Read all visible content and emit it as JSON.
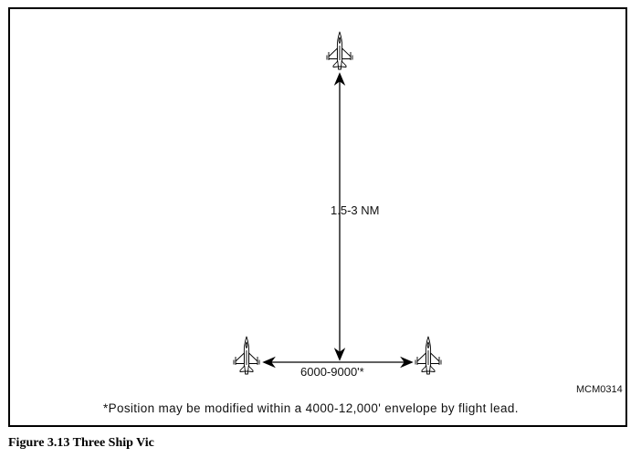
{
  "diagram": {
    "vertical_distance_label": "1.5-3 NM",
    "lateral_distance_label": "6000-9000'*",
    "figure_code": "MCM0314",
    "footnote": "*Position may be modified within a 4000-12,000' envelope by flight lead."
  },
  "caption": "Figure 3.13  Three Ship Vic",
  "icons": {
    "aircraft": "fighter-jet-icon",
    "arrow": "double-headed-arrow"
  }
}
